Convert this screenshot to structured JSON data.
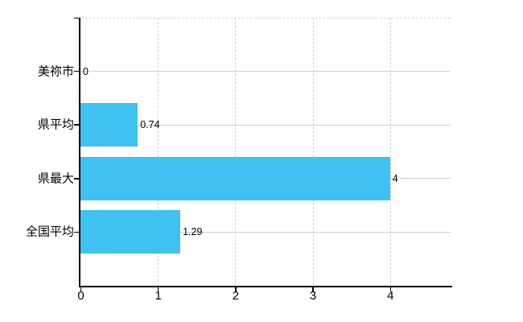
{
  "chart_data": {
    "type": "bar",
    "orientation": "horizontal",
    "title": "",
    "categories": [
      "美祢市",
      "県平均",
      "県最大",
      "全国平均"
    ],
    "values": [
      0,
      0.74,
      4,
      1.29
    ],
    "value_labels": [
      "0",
      "0.74",
      "4",
      "1.29"
    ],
    "x_ticks": [
      "0",
      "1",
      "2",
      "3",
      "4"
    ],
    "x_tick_values": [
      0,
      1,
      2,
      3,
      4
    ],
    "xlim": [
      0,
      4.8
    ],
    "ylabel": "",
    "xlabel": "",
    "legend": "none",
    "grid": {
      "horizontal": "solid",
      "vertical": "dashed",
      "top_border": "dashed"
    },
    "colors": {
      "bar": "#3fc1f1",
      "h_grid": "#cbd2cb",
      "v_grid": "#d7d1d9",
      "axis": "#000000",
      "text": "#000000",
      "background": "#ffffff"
    }
  }
}
